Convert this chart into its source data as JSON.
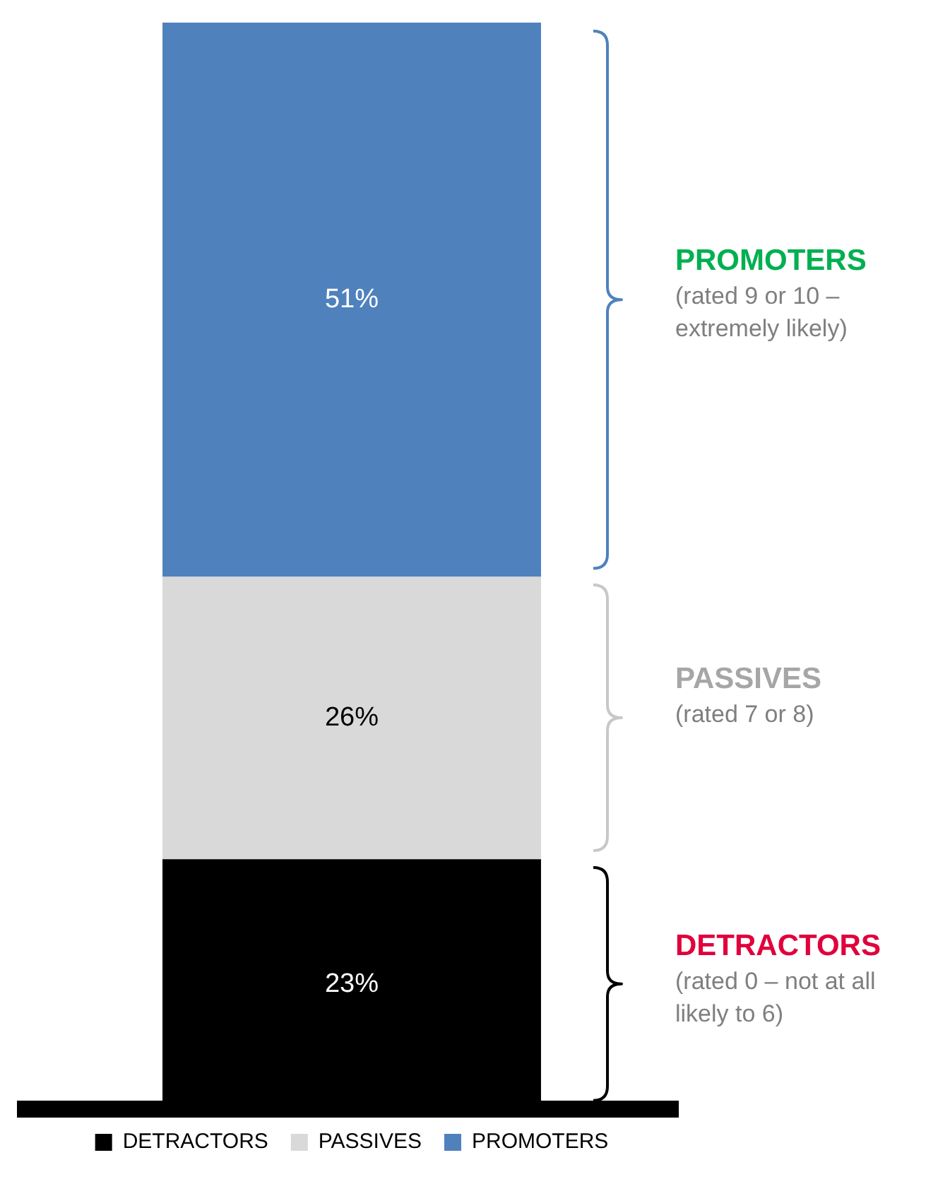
{
  "chart_data": {
    "type": "bar",
    "stacked": true,
    "categories": [
      null
    ],
    "grid": false,
    "legend": "bottom",
    "series": [
      {
        "name": "DETRACTORS",
        "color": "#000000",
        "values": [
          23
        ],
        "value_labels": [
          "23%"
        ]
      },
      {
        "name": "PASSIVES",
        "color": "#d9d9d9",
        "values": [
          26
        ],
        "value_labels": [
          "26%"
        ]
      },
      {
        "name": "PROMOTERS",
        "color": "#4f81bd",
        "values": [
          51
        ],
        "value_labels": [
          "51%"
        ]
      }
    ],
    "annotations": [
      "PROMOTERS",
      "(rated 9 or 10 – extremely likely)",
      "PASSIVES",
      "(rated 7 or 8)",
      "DETRACTORS",
      "(rated 0 – not at all likely to 6)"
    ]
  }
}
